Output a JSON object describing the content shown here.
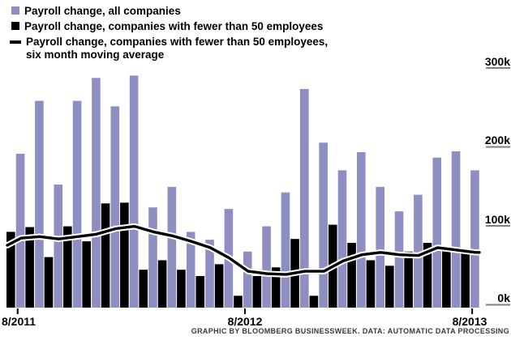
{
  "legend": {
    "items": [
      {
        "swatch": "purple-square",
        "label": "Payroll change, all companies"
      },
      {
        "swatch": "black-square",
        "label": "Payroll change, companies with fewer than 50 employees"
      },
      {
        "swatch": "black-dash",
        "line1": "Payroll change, companies with fewer than 50 employees,",
        "line2": "six month moving average"
      }
    ]
  },
  "caption": "GRAPHIC BY BLOOMBERG BUSINESSWEEK. DATA: AUTOMATIC DATA PROCESSING",
  "chart_data": {
    "type": "bar",
    "subtype": "grouped monthly bars with moving-average line overlay",
    "n_months": 25,
    "x_axis": {
      "ticks": [
        {
          "label": "8/2011",
          "month_index": 0
        },
        {
          "label": "8/2012",
          "month_index": 12
        },
        {
          "label": "8/2013",
          "month_index": 24
        }
      ]
    },
    "y_axis": {
      "unit": "thousands of jobs",
      "ylim": [
        0,
        300
      ],
      "ticks": [
        {
          "label": "0k",
          "value": 0
        },
        {
          "label": "100k",
          "value": 100
        },
        {
          "label": "200k",
          "value": 200
        },
        {
          "label": "300k",
          "value": 300
        }
      ],
      "side": "right",
      "grid": false
    },
    "series": [
      {
        "name": "Payroll change, all companies",
        "type": "bar",
        "color": "#8D8FC2",
        "values": [
          195,
          262,
          156,
          262,
          291,
          255,
          294,
          127,
          153,
          96,
          86,
          125,
          71,
          103,
          146,
          277,
          209,
          174,
          197,
          153,
          122,
          143,
          190,
          198,
          174
        ]
      },
      {
        "name": "Payroll change, companies with fewer than 50 employees",
        "type": "bar",
        "color": "#000000",
        "values": [
          96,
          102,
          64,
          103,
          84,
          132,
          133,
          48,
          60,
          48,
          40,
          55,
          15,
          40,
          51,
          87,
          15,
          105,
          82,
          60,
          53,
          71,
          82,
          77,
          74
        ]
      },
      {
        "name": "Payroll change, companies with fewer than 50 employees, six month moving average",
        "type": "line",
        "color": "#000000",
        "casing_color": "#FFFFFF",
        "edge_start_value": 79,
        "values": [
          88,
          90,
          87,
          90,
          93,
          100,
          103,
          96,
          91,
          84,
          76,
          63,
          46,
          43,
          42,
          46,
          46,
          59,
          67,
          70,
          67,
          66,
          76,
          73,
          70
        ]
      }
    ],
    "colors": {
      "all_companies": "#8D8FC2",
      "small_companies": "#000000",
      "moving_average": "#000000",
      "moving_average_casing": "#FFFFFF",
      "axis_tick_gray": "#7F7F7F",
      "background": "#FFFFFF"
    }
  }
}
